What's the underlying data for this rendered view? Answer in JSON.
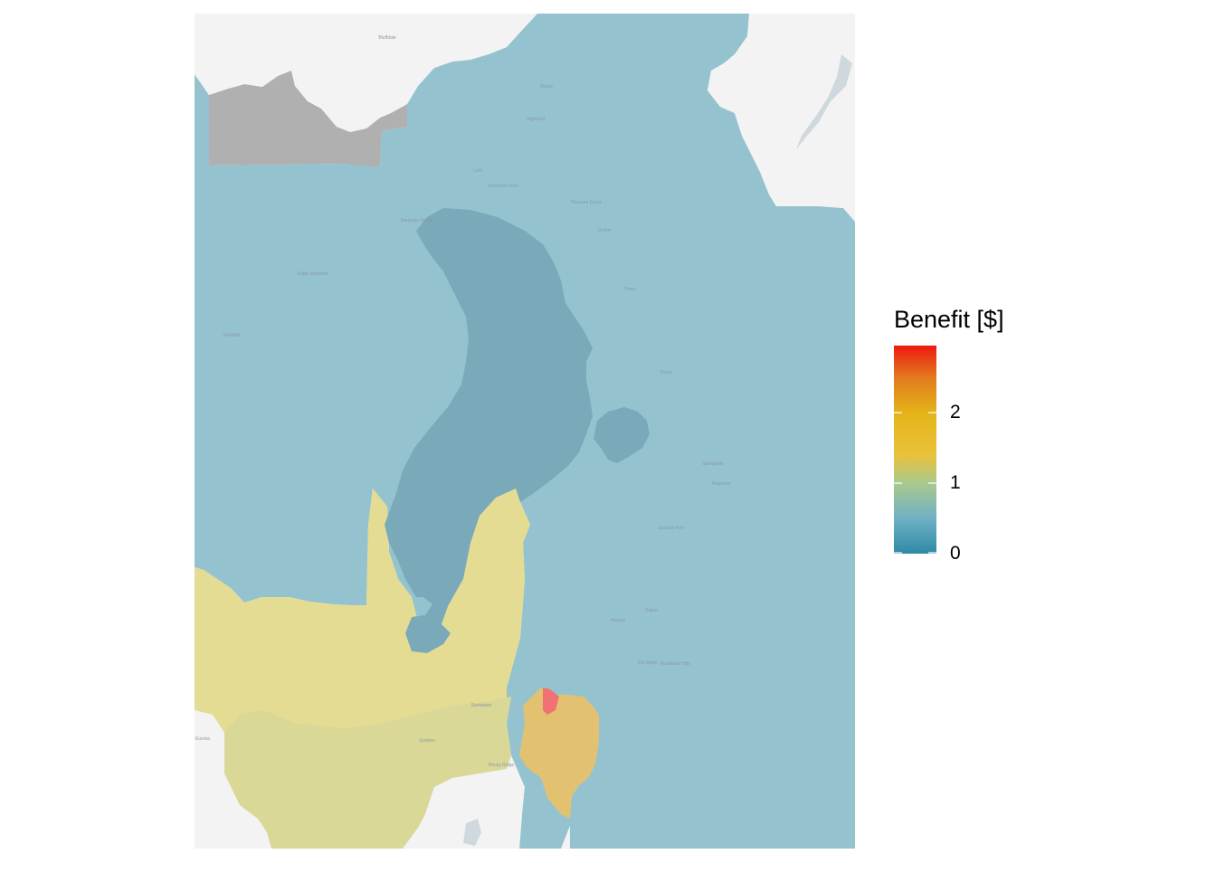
{
  "legend": {
    "title": "Benefit [$]",
    "ticks": [
      {
        "value": 0,
        "label": "0"
      },
      {
        "value": 1,
        "label": "1"
      },
      {
        "value": 2,
        "label": "2"
      }
    ],
    "range": [
      0,
      2.95
    ],
    "gradient_stops": [
      {
        "value": 0.0,
        "color": "#2e8aa6"
      },
      {
        "value": 0.5,
        "color": "#6fb1c4"
      },
      {
        "value": 1.0,
        "color": "#a9c98e"
      },
      {
        "value": 1.4,
        "color": "#e9c23a"
      },
      {
        "value": 2.0,
        "color": "#e4b318"
      },
      {
        "value": 2.5,
        "color": "#e27a1e"
      },
      {
        "value": 2.95,
        "color": "#ee1a10"
      }
    ]
  },
  "colors": {
    "background": "#ffffff",
    "basemap": "#f3f3f3",
    "no_data": "#b0b0b0",
    "low_region": "#94c3cf",
    "lake": "#7aaab9",
    "mid_region": "#e4dc92",
    "mid_region_dark": "#d9d897",
    "orange_region": "#f0c25f",
    "high_region": "#f07272",
    "water": "#cfd8dd"
  },
  "map_labels": [
    "Bluffdale",
    "Alpine",
    "Highland",
    "Lehi",
    "American Fork",
    "Pleasant Grove",
    "Lindon",
    "Saratoga Springs",
    "Eagle Mountain",
    "Orem",
    "Provo",
    "Fairfield",
    "Springville",
    "Mapleton",
    "Spanish Fork",
    "Payson",
    "Salem",
    "Elk Ridge",
    "Woodland Hills",
    "Goshen",
    "Rocky Ridge",
    "Santaquin",
    "Eureka"
  ]
}
